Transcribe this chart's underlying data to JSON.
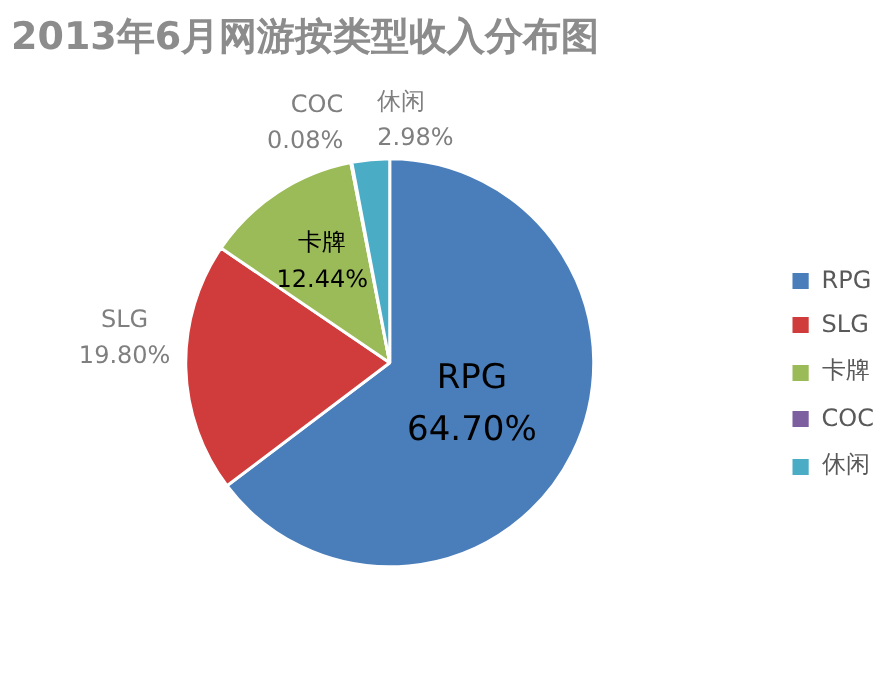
{
  "chart_data": {
    "type": "pie",
    "title": "2013年6月网游按类型收入分布图",
    "categories": [
      "RPG",
      "SLG",
      "卡牌",
      "COC",
      "休闲"
    ],
    "values": [
      64.7,
      19.8,
      12.44,
      0.08,
      2.98
    ],
    "value_labels": [
      "64.70%",
      "19.80%",
      "12.44%",
      "0.08%",
      "2.98%"
    ],
    "colors": [
      "#4a7ebb",
      "#d03b3b",
      "#9bbb59",
      "#7d5fa0",
      "#4bacc6"
    ],
    "legend": "right"
  }
}
